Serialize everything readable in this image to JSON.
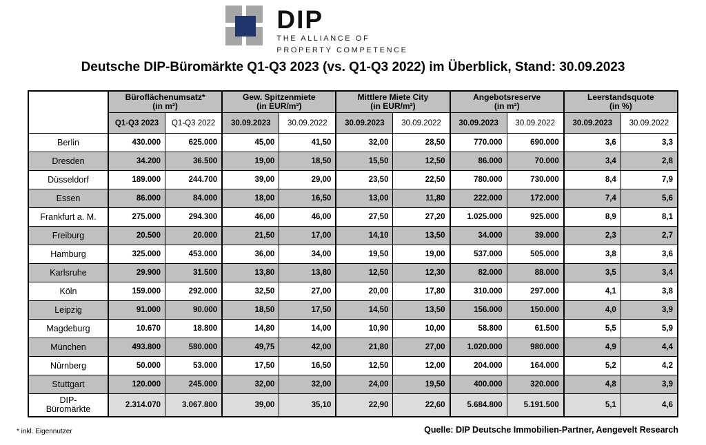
{
  "logo": {
    "brand": "DIP",
    "tagline_line1": "THE ALLIANCE OF",
    "tagline_line2": "PROPERTY COMPETENCE"
  },
  "title": "Deutsche DIP-Büromärkte Q1-Q3 2023 (vs. Q1-Q3 2022) im Überblick, Stand: 30.09.2023",
  "colors": {
    "header_gray": "#c0c0c0",
    "stripe_gray": "#c0c0c0",
    "total_gray": "#dcdcdc",
    "logo_gray": "#a5a5a5",
    "logo_navy": "#1f356b"
  },
  "table": {
    "groups": [
      {
        "label": "Büroflächenumsatz*",
        "unit": "(in m²)",
        "columns": [
          "Q1-Q3 2023",
          "Q1-Q3 2022"
        ]
      },
      {
        "label": "Gew. Spitzenmiete",
        "unit": "(in EUR/m²)",
        "columns": [
          "30.09.2023",
          "30.09.2022"
        ]
      },
      {
        "label": "Mittlere Miete City",
        "unit": "(in EUR/m²)",
        "columns": [
          "30.09.2023",
          "30.09.2022"
        ]
      },
      {
        "label": "Angebotsreserve",
        "unit": "(in m²)",
        "columns": [
          "30.09.2023",
          "30.09.2022"
        ]
      },
      {
        "label": "Leerstandsquote",
        "unit": "(in %)",
        "columns": [
          "30.09.2023",
          "30.09.2022"
        ]
      }
    ],
    "rows": [
      {
        "name": "Berlin",
        "values": [
          "430.000",
          "625.000",
          "45,00",
          "41,50",
          "32,00",
          "28,50",
          "770.000",
          "690.000",
          "3,6",
          "3,3"
        ]
      },
      {
        "name": "Dresden",
        "values": [
          "34.200",
          "36.500",
          "19,00",
          "18,50",
          "15,50",
          "12,50",
          "86.000",
          "70.000",
          "3,4",
          "2,8"
        ]
      },
      {
        "name": "Düsseldorf",
        "values": [
          "189.000",
          "244.700",
          "39,00",
          "29,00",
          "23,50",
          "22,50",
          "780.000",
          "730.000",
          "8,4",
          "7,9"
        ]
      },
      {
        "name": "Essen",
        "values": [
          "86.000",
          "84.000",
          "18,00",
          "16,50",
          "13,00",
          "11,80",
          "222.000",
          "172.000",
          "7,4",
          "5,6"
        ]
      },
      {
        "name": "Frankfurt a. M.",
        "values": [
          "275.000",
          "294.300",
          "46,00",
          "46,00",
          "27,50",
          "27,20",
          "1.025.000",
          "925.000",
          "8,9",
          "8,1"
        ]
      },
      {
        "name": "Freiburg",
        "values": [
          "20.500",
          "20.000",
          "21,50",
          "17,00",
          "14,10",
          "13,50",
          "34.000",
          "39.000",
          "2,3",
          "2,7"
        ]
      },
      {
        "name": "Hamburg",
        "values": [
          "325.000",
          "453.000",
          "36,00",
          "34,00",
          "19,50",
          "19,00",
          "537.000",
          "505.000",
          "3,8",
          "3,6"
        ]
      },
      {
        "name": "Karlsruhe",
        "values": [
          "29.900",
          "31.500",
          "13,80",
          "13,80",
          "12,50",
          "12,30",
          "82.000",
          "88.000",
          "3,5",
          "3,4"
        ]
      },
      {
        "name": "Köln",
        "values": [
          "159.000",
          "292.000",
          "32,50",
          "27,00",
          "20,00",
          "17,80",
          "310.000",
          "297.000",
          "4,1",
          "3,8"
        ]
      },
      {
        "name": "Leipzig",
        "values": [
          "91.000",
          "90.000",
          "18,50",
          "17,50",
          "14,50",
          "13,50",
          "156.000",
          "150.000",
          "4,0",
          "3,9"
        ]
      },
      {
        "name": "Magdeburg",
        "values": [
          "10.670",
          "18.800",
          "14,80",
          "14,00",
          "10,90",
          "10,00",
          "58.800",
          "61.500",
          "5,5",
          "5,9"
        ]
      },
      {
        "name": "München",
        "values": [
          "493.800",
          "580.000",
          "49,75",
          "42,00",
          "21,80",
          "27,00",
          "1.020.000",
          "980.000",
          "4,9",
          "4,4"
        ]
      },
      {
        "name": "Nürnberg",
        "values": [
          "50.000",
          "53.000",
          "17,50",
          "16,50",
          "12,50",
          "12,00",
          "204.000",
          "164.000",
          "5,2",
          "4,2"
        ]
      },
      {
        "name": "Stuttgart",
        "values": [
          "120.000",
          "245.000",
          "32,00",
          "32,00",
          "24,00",
          "19,50",
          "400.000",
          "320.000",
          "4,8",
          "3,9"
        ]
      }
    ],
    "total_row": {
      "name": "DIP-\nBüromärkte",
      "values": [
        "2.314.070",
        "3.067.800",
        "39,00",
        "35,10",
        "22,90",
        "22,60",
        "5.684.800",
        "5.191.500",
        "5,1",
        "4,6"
      ]
    }
  },
  "footnote": "* inkl. Eigennutzer",
  "source": "Quelle: DIP Deutsche Immobilien-Partner, Aengevelt Research"
}
